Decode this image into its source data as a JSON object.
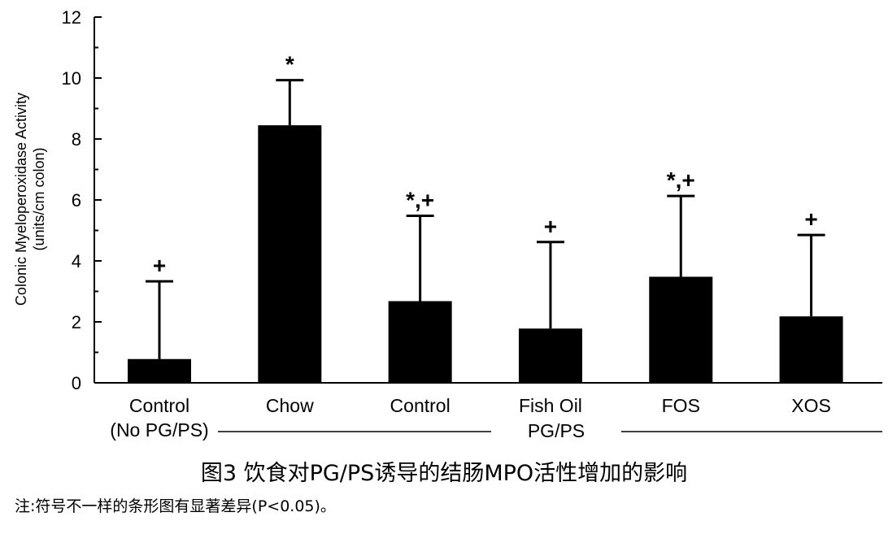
{
  "chart_data": {
    "type": "bar",
    "ylabel": "Colonic Myeloperoxidase Activity",
    "ylabel_unit": "(units/cm colon)",
    "ylim": [
      0,
      12
    ],
    "y_ticks": [
      0,
      2,
      4,
      6,
      8,
      10,
      12
    ],
    "categories": [
      {
        "label": "Control",
        "sublabel": "(No PG/PS)",
        "value": 0.78,
        "error_upper": 3.33,
        "mark": "+"
      },
      {
        "label": "Chow",
        "sublabel": "",
        "value": 8.45,
        "error_upper": 9.93,
        "mark": "*"
      },
      {
        "label": "Control",
        "sublabel": "",
        "value": 2.68,
        "error_upper": 5.48,
        "mark": "*,+"
      },
      {
        "label": "Fish Oil",
        "sublabel": "",
        "value": 1.78,
        "error_upper": 4.62,
        "mark": "+"
      },
      {
        "label": "FOS",
        "sublabel": "",
        "value": 3.48,
        "error_upper": 6.13,
        "mark": "*,+"
      },
      {
        "label": "XOS",
        "sublabel": "",
        "value": 2.18,
        "error_upper": 4.85,
        "mark": "+"
      }
    ],
    "group_label": "PG/PS"
  },
  "caption": "图3 饮食对PG/PS诱导的结肠MPO活性增加的影响",
  "note": "注:符号不一样的条形图有显著差异(P<0.05)。"
}
